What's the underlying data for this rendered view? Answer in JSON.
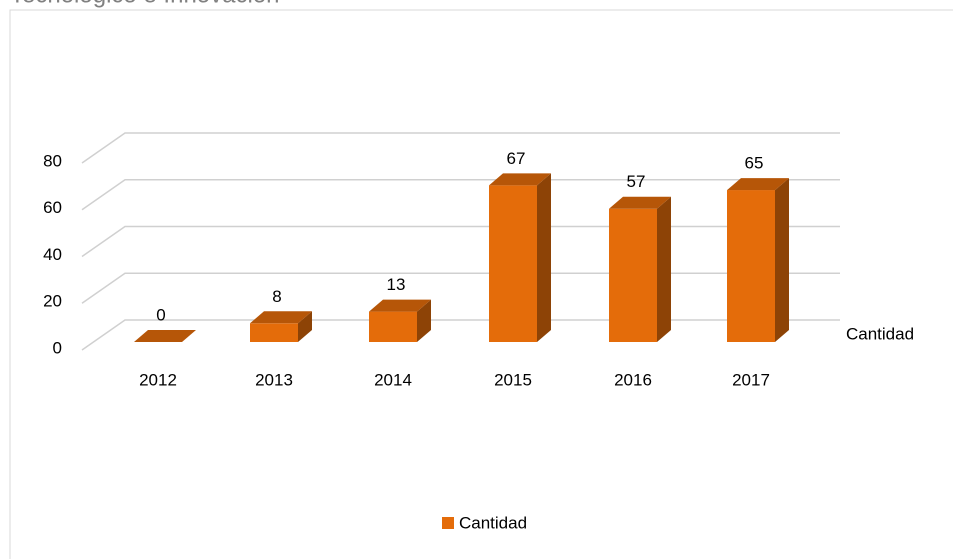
{
  "chart_data": {
    "type": "bar3d",
    "title": "Tecnológico e Innovación",
    "categories": [
      "2012",
      "2013",
      "2014",
      "2015",
      "2016",
      "2017"
    ],
    "series": [
      {
        "name": "Cantidad",
        "color": "#e46c0a",
        "values": [
          0,
          8,
          13,
          67,
          57,
          65
        ]
      }
    ],
    "ylim": [
      0,
      80
    ],
    "yticks": [
      0,
      20,
      40,
      60,
      80
    ],
    "grid": true,
    "legend": "bottom"
  }
}
